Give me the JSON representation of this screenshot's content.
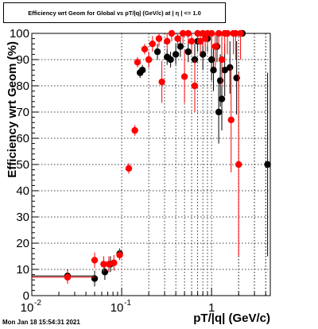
{
  "chart_data": {
    "type": "scatter",
    "title": "Efficiency wrt Geom for Global vs pT/|q| (GeV/c) at | η | <= 1.0",
    "xlabel": "pT/|q| (GeV/c)",
    "ylabel": "Efficiency wrt Geom (%)",
    "xscale": "log",
    "xlim": [
      0.01,
      4.5
    ],
    "ylim": [
      0,
      100
    ],
    "grid": true,
    "x_ticks": [
      {
        "label": "10",
        "exp": "-2",
        "value": 0.01
      },
      {
        "label": "10",
        "exp": "-1",
        "value": 0.1
      },
      {
        "label": "1",
        "exp": "",
        "value": 1
      }
    ],
    "y_ticks": [
      "0",
      "10",
      "20",
      "30",
      "40",
      "50",
      "60",
      "70",
      "80",
      "90",
      "100"
    ],
    "series": [
      {
        "color": "#000000",
        "points": [
          {
            "x": 0.025,
            "y": 7.5,
            "xerr": [
              0.015,
              0.025
            ],
            "yerr": 2.5
          },
          {
            "x": 0.05,
            "y": 6.5,
            "yerr": 3
          },
          {
            "x": 0.065,
            "y": 9,
            "yerr": 3
          },
          {
            "x": 0.075,
            "y": 12,
            "yerr": 3
          },
          {
            "x": 0.095,
            "y": 16,
            "yerr": 2
          },
          {
            "x": 0.16,
            "y": 85,
            "yerr": 2
          },
          {
            "x": 0.17,
            "y": 86,
            "yerr": 2
          },
          {
            "x": 0.2,
            "y": 90,
            "yerr": 3
          },
          {
            "x": 0.25,
            "y": 93,
            "yerr": 3
          },
          {
            "x": 0.32,
            "y": 91,
            "yerr": 3
          },
          {
            "x": 0.35,
            "y": 90,
            "yerr": 3
          },
          {
            "x": 0.4,
            "y": 92,
            "yerr": 4
          },
          {
            "x": 0.45,
            "y": 95,
            "yerr": 4
          },
          {
            "x": 0.55,
            "y": 93,
            "yerr": 4
          },
          {
            "x": 0.65,
            "y": 90,
            "yerr": 6
          },
          {
            "x": 0.7,
            "y": 97,
            "yerr": 4
          },
          {
            "x": 0.8,
            "y": 92,
            "yerr": 6
          },
          {
            "x": 0.9,
            "y": 98,
            "yerr": 5
          },
          {
            "x": 1.0,
            "y": 90,
            "yerr": 8
          },
          {
            "x": 1.05,
            "y": 86,
            "yerr": 8
          },
          {
            "x": 1.15,
            "y": 95,
            "yerr": 6
          },
          {
            "x": 1.2,
            "y": 70,
            "yerr": 12
          },
          {
            "x": 1.25,
            "y": 82,
            "yerr": 10
          },
          {
            "x": 1.3,
            "y": 75,
            "yerr": 12
          },
          {
            "x": 1.4,
            "y": 86,
            "yerr": 10
          },
          {
            "x": 1.6,
            "y": 87,
            "yerr": 10
          },
          {
            "x": 1.9,
            "y": 83,
            "yerr": 14
          },
          {
            "x": 2.2,
            "y": 100,
            "yerr": 0
          },
          {
            "x": 4.2,
            "y": 50,
            "yerr": 35
          }
        ]
      },
      {
        "color": "#ff0000",
        "points": [
          {
            "x": 0.025,
            "y": 7.0,
            "xerr": [
              0.015,
              0.025
            ],
            "yerr": 2.5
          },
          {
            "x": 0.05,
            "y": 13.5,
            "yerr": 3
          },
          {
            "x": 0.063,
            "y": 12,
            "yerr": 3
          },
          {
            "x": 0.072,
            "y": 12,
            "yerr": 3
          },
          {
            "x": 0.082,
            "y": 12.5,
            "yerr": 3
          },
          {
            "x": 0.095,
            "y": 15.5,
            "yerr": 2
          },
          {
            "x": 0.12,
            "y": 48.5,
            "xerr": [
              0.005,
              0.005
            ],
            "yerr": 2
          },
          {
            "x": 0.14,
            "y": 63,
            "yerr": 2
          },
          {
            "x": 0.15,
            "y": 89,
            "yerr": 2
          },
          {
            "x": 0.18,
            "y": 94,
            "yerr": 2
          },
          {
            "x": 0.2,
            "y": 90,
            "yerr": 3
          },
          {
            "x": 0.22,
            "y": 96,
            "yerr": 3
          },
          {
            "x": 0.26,
            "y": 98,
            "yerr": 3
          },
          {
            "x": 0.28,
            "y": 81.5,
            "yerr": 8
          },
          {
            "x": 0.32,
            "y": 97,
            "yerr": 3
          },
          {
            "x": 0.36,
            "y": 100,
            "yerr": 3
          },
          {
            "x": 0.42,
            "y": 98,
            "yerr": 3
          },
          {
            "x": 0.48,
            "y": 100,
            "yerr": 4
          },
          {
            "x": 0.5,
            "y": 83.5,
            "yerr": 10
          },
          {
            "x": 0.55,
            "y": 100,
            "yerr": 4
          },
          {
            "x": 0.6,
            "y": 97,
            "yerr": 5
          },
          {
            "x": 0.65,
            "y": 80,
            "yerr": 10
          },
          {
            "x": 0.7,
            "y": 100,
            "yerr": 4
          },
          {
            "x": 0.75,
            "y": 97,
            "yerr": 5
          },
          {
            "x": 0.8,
            "y": 100,
            "yerr": 5
          },
          {
            "x": 0.85,
            "y": 98,
            "yerr": 5
          },
          {
            "x": 0.9,
            "y": 100,
            "yerr": 5
          },
          {
            "x": 1.0,
            "y": 100,
            "yerr": 6
          },
          {
            "x": 1.1,
            "y": 95,
            "yerr": 8
          },
          {
            "x": 1.2,
            "y": 100,
            "yerr": 6
          },
          {
            "x": 1.3,
            "y": 90,
            "yerr": 10
          },
          {
            "x": 1.4,
            "y": 100,
            "yerr": 8
          },
          {
            "x": 1.5,
            "y": 100,
            "yerr": 8
          },
          {
            "x": 1.65,
            "y": 67,
            "yerr": 20
          },
          {
            "x": 1.75,
            "y": 100,
            "yerr": 8
          },
          {
            "x": 1.85,
            "y": 100,
            "yerr": 10
          },
          {
            "x": 2.0,
            "y": 50,
            "yerr": 35
          },
          {
            "x": 2.1,
            "y": 100,
            "yerr": 10
          }
        ]
      }
    ]
  },
  "footer": {
    "timestamp": "Mon Jan 18 15:54:31 2021"
  }
}
